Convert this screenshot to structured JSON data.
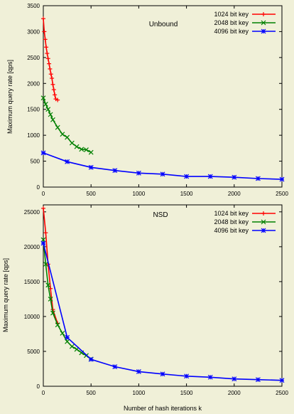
{
  "chart_data": [
    {
      "type": "line",
      "title": "Unbound",
      "xlabel": "",
      "ylabel": "Maximum query rate [qps]",
      "xlim": [
        0,
        2500
      ],
      "ylim": [
        0,
        3500
      ],
      "xticks": [
        0,
        500,
        1000,
        1500,
        2000,
        2500
      ],
      "yticks": [
        0,
        500,
        1000,
        1500,
        2000,
        2500,
        3000,
        3500
      ],
      "grid": false,
      "legend": "top-right",
      "series": [
        {
          "name": "1024 bit key",
          "color": "#ff0000",
          "marker": "plus",
          "points": [
            [
              0,
              3250
            ],
            [
              10,
              3000
            ],
            [
              20,
              2850
            ],
            [
              30,
              2700
            ],
            [
              40,
              2580
            ],
            [
              50,
              2480
            ],
            [
              60,
              2380
            ],
            [
              70,
              2280
            ],
            [
              80,
              2180
            ],
            [
              90,
              2100
            ],
            [
              100,
              1980
            ],
            [
              110,
              1880
            ],
            [
              120,
              1780
            ],
            [
              130,
              1700
            ],
            [
              150,
              1680
            ]
          ]
        },
        {
          "name": "2048 bit key",
          "color": "#008000",
          "marker": "cross",
          "points": [
            [
              0,
              1720
            ],
            [
              25,
              1600
            ],
            [
              50,
              1500
            ],
            [
              75,
              1400
            ],
            [
              100,
              1300
            ],
            [
              150,
              1150
            ],
            [
              200,
              1020
            ],
            [
              250,
              960
            ],
            [
              300,
              850
            ],
            [
              350,
              780
            ],
            [
              400,
              730
            ],
            [
              450,
              720
            ],
            [
              500,
              670
            ]
          ]
        },
        {
          "name": "4096 bit key",
          "color": "#0000ff",
          "marker": "star",
          "points": [
            [
              0,
              660
            ],
            [
              250,
              490
            ],
            [
              500,
              380
            ],
            [
              750,
              320
            ],
            [
              1000,
              270
            ],
            [
              1250,
              250
            ],
            [
              1500,
              205
            ],
            [
              1750,
              205
            ],
            [
              2000,
              190
            ],
            [
              2250,
              165
            ],
            [
              2500,
              150
            ]
          ]
        }
      ]
    },
    {
      "type": "line",
      "title": "NSD",
      "xlabel": "Number of hash iterations k",
      "ylabel": "Maximum query rate [qps]",
      "xlim": [
        0,
        2500
      ],
      "ylim": [
        0,
        26000
      ],
      "xticks": [
        0,
        500,
        1000,
        1500,
        2000,
        2500
      ],
      "yticks": [
        0,
        5000,
        10000,
        15000,
        20000,
        25000
      ],
      "grid": false,
      "legend": "top-right",
      "series": [
        {
          "name": "1024 bit key",
          "color": "#ff0000",
          "marker": "plus",
          "points": [
            [
              0,
              25500
            ],
            [
              25,
              22000
            ],
            [
              50,
              17500
            ],
            [
              75,
              14000
            ],
            [
              100,
              11000
            ],
            [
              150,
              9000
            ]
          ]
        },
        {
          "name": "2048 bit key",
          "color": "#008000",
          "marker": "cross",
          "points": [
            [
              0,
              21000
            ],
            [
              25,
              17500
            ],
            [
              50,
              14500
            ],
            [
              75,
              12500
            ],
            [
              100,
              10500
            ],
            [
              150,
              8800
            ],
            [
              200,
              7600
            ],
            [
              250,
              6400
            ],
            [
              300,
              5700
            ],
            [
              350,
              5300
            ],
            [
              400,
              4800
            ],
            [
              450,
              4400
            ],
            [
              500,
              3900
            ]
          ]
        },
        {
          "name": "4096 bit key",
          "color": "#0000ff",
          "marker": "star",
          "points": [
            [
              0,
              20500
            ],
            [
              250,
              7000
            ],
            [
              500,
              3850
            ],
            [
              750,
              2800
            ],
            [
              1000,
              2100
            ],
            [
              1250,
              1750
            ],
            [
              1500,
              1450
            ],
            [
              1750,
              1300
            ],
            [
              2000,
              1050
            ],
            [
              2250,
              950
            ],
            [
              2500,
              850
            ]
          ]
        }
      ]
    }
  ]
}
